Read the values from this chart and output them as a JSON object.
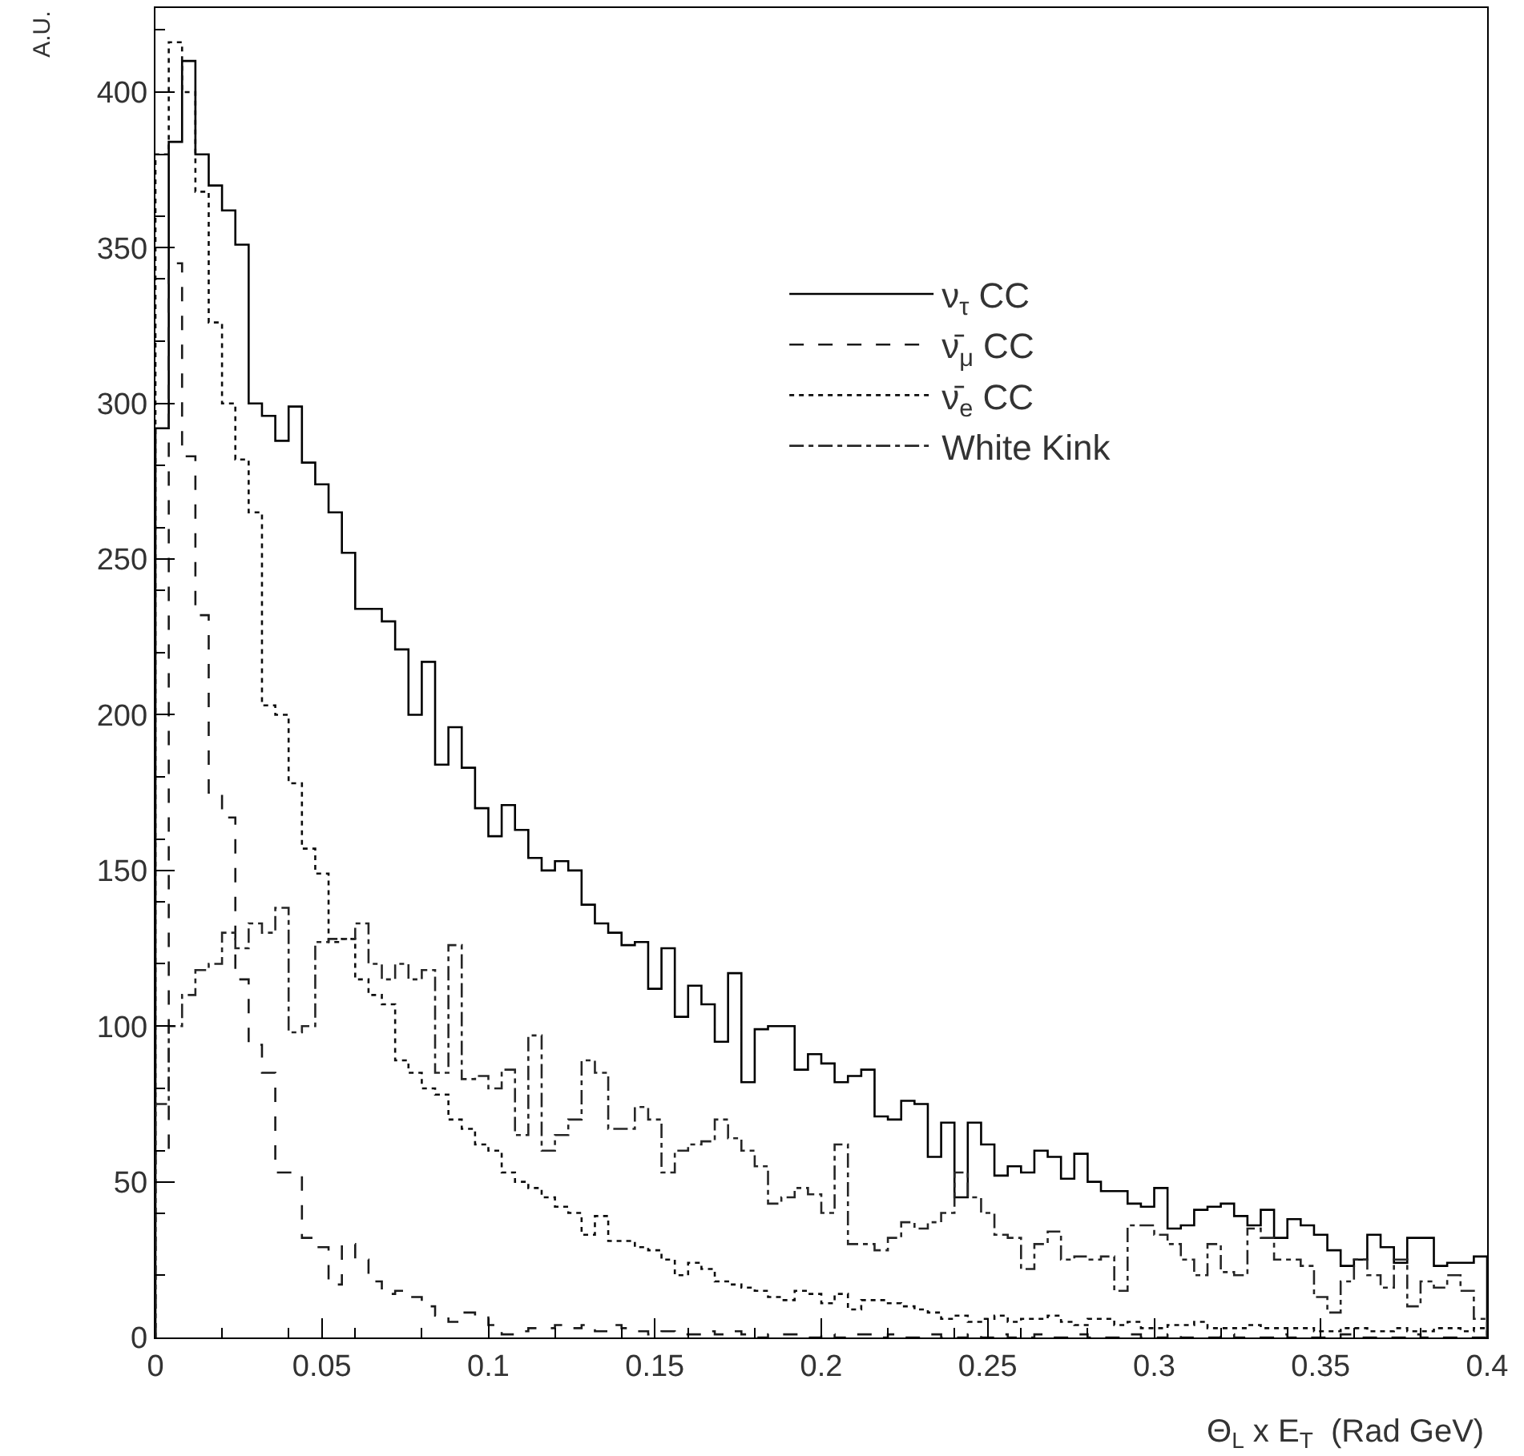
{
  "chart_data": {
    "type": "histogram",
    "xlabel": "Θ$_{L}$ x E$_{T}$  (Rad GeV)",
    "ylabel": "A.U.",
    "bins": [
      0,
      0.004,
      0.008,
      0.012,
      0.016,
      0.02,
      0.024,
      0.028,
      0.032,
      0.036,
      0.04,
      0.044,
      0.048,
      0.052,
      0.056,
      0.06,
      0.064,
      0.068,
      0.072,
      0.076,
      0.08,
      0.084,
      0.088,
      0.092,
      0.096,
      0.1,
      0.104,
      0.108,
      0.112,
      0.116,
      0.12,
      0.124,
      0.128,
      0.132,
      0.136,
      0.14,
      0.144,
      0.148,
      0.152,
      0.156,
      0.16,
      0.164,
      0.168,
      0.172,
      0.176,
      0.18,
      0.184,
      0.188,
      0.192,
      0.196,
      0.2,
      0.204,
      0.208,
      0.212,
      0.216,
      0.22,
      0.224,
      0.228,
      0.232,
      0.236,
      0.24,
      0.244,
      0.248,
      0.252,
      0.256,
      0.26,
      0.264,
      0.268,
      0.272,
      0.276,
      0.28,
      0.284,
      0.288,
      0.292,
      0.296,
      0.3,
      0.304,
      0.308,
      0.312,
      0.316,
      0.32,
      0.324,
      0.328,
      0.332,
      0.336,
      0.34,
      0.344,
      0.348,
      0.352,
      0.356,
      0.36,
      0.364,
      0.368,
      0.372,
      0.376,
      0.38,
      0.384,
      0.388,
      0.392,
      0.396,
      0.4
    ],
    "series": [
      {
        "name": "ν$_{τ}$ CC",
        "color": "#000000",
        "line_style": "solid",
        "values": [
          292,
          384,
          410,
          380,
          370,
          362,
          351,
          300,
          296,
          288,
          299,
          281,
          274,
          265,
          252,
          234,
          234,
          230,
          221,
          200,
          217,
          184,
          196,
          183,
          170,
          161,
          171,
          163,
          154,
          150,
          153,
          150,
          139,
          133,
          130,
          126,
          127,
          112,
          125,
          103,
          113,
          107,
          95,
          117,
          82,
          99,
          100,
          100,
          86,
          91,
          88,
          82,
          84,
          86,
          71,
          70,
          76,
          75,
          58,
          69,
          45,
          69,
          62,
          52,
          55,
          53,
          60,
          58,
          51,
          59,
          50,
          47,
          47,
          43,
          42,
          48,
          35,
          36,
          41,
          42,
          43,
          39,
          36,
          41,
          32,
          38,
          36,
          33,
          28,
          23,
          25,
          33,
          29,
          24,
          32,
          32,
          23,
          24,
          24,
          26
        ]
      },
      {
        "name": "ν̄$_{μ}$ CC",
        "color": "#1a1a1a",
        "line_style": "dashed",
        "values": [
          60,
          345,
          283,
          232,
          175,
          167,
          115,
          94,
          85,
          53,
          53,
          32,
          29,
          17,
          30,
          25,
          18,
          14,
          15,
          13,
          10,
          7,
          5,
          8,
          7,
          4,
          1,
          2,
          3,
          3,
          4,
          3,
          4,
          2,
          4,
          3,
          2,
          1,
          2,
          1,
          1,
          2,
          1,
          2,
          1,
          0,
          1,
          1,
          1,
          0,
          1,
          0,
          1,
          1,
          0,
          1,
          0,
          0,
          1,
          0,
          0,
          1,
          0,
          1,
          0,
          0,
          1,
          0,
          0,
          1,
          0,
          0,
          0,
          1,
          0,
          0,
          1,
          0,
          0,
          0,
          1,
          0,
          0,
          0,
          1,
          0,
          0,
          0,
          0,
          1,
          0,
          0,
          0,
          0,
          1,
          0,
          0,
          0,
          0,
          0
        ]
      },
      {
        "name": "ν̄$_{e}$ CC",
        "color": "#0d0d0d",
        "line_style": "dotted",
        "values": [
          380,
          416,
          400,
          368,
          326,
          300,
          282,
          265,
          203,
          200,
          178,
          157,
          149,
          127,
          128,
          115,
          110,
          107,
          89,
          85,
          80,
          78,
          70,
          67,
          62,
          60,
          53,
          50,
          48,
          45,
          42,
          40,
          33,
          39,
          31,
          31,
          29,
          28,
          25,
          20,
          24,
          22,
          18,
          17,
          16,
          15,
          13,
          12,
          15,
          14,
          11,
          14,
          9,
          12,
          12,
          11,
          10,
          9,
          8,
          6,
          7,
          5,
          6,
          7,
          5,
          6,
          6,
          7,
          5,
          4,
          6,
          6,
          4,
          5,
          3,
          3,
          4,
          4,
          5,
          3,
          3,
          3,
          4,
          3,
          3,
          3,
          3,
          2,
          2,
          3,
          3,
          2,
          2,
          3,
          2,
          2,
          3,
          3,
          2,
          3
        ]
      },
      {
        "name": "White Kink",
        "color": "#262626",
        "line_style": "dashdot",
        "values": [
          75,
          100,
          110,
          118,
          120,
          130,
          125,
          133,
          130,
          138,
          98,
          100,
          127,
          128,
          128,
          133,
          120,
          115,
          120,
          115,
          118,
          85,
          126,
          83,
          84,
          80,
          86,
          65,
          97,
          60,
          65,
          70,
          89,
          85,
          67,
          67,
          74,
          70,
          53,
          60,
          62,
          63,
          70,
          64,
          60,
          55,
          43,
          45,
          48,
          46,
          40,
          62,
          30,
          30,
          28,
          32,
          37,
          35,
          37,
          40,
          53,
          45,
          40,
          33,
          32,
          22,
          30,
          34,
          25,
          26,
          25,
          26,
          15,
          36,
          36,
          33,
          30,
          25,
          20,
          30,
          21,
          20,
          35,
          32,
          25,
          25,
          23,
          13,
          8,
          18,
          25,
          20,
          16,
          25,
          10,
          18,
          16,
          20,
          15,
          6
        ]
      }
    ],
    "xlim": [
      0,
      0.4
    ],
    "xticks": [
      0,
      0.05,
      0.1,
      0.15,
      0.2,
      0.25,
      0.3,
      0.35,
      0.4
    ],
    "ylim": [
      0,
      427
    ],
    "yticks": [
      0,
      50,
      100,
      150,
      200,
      250,
      300,
      350,
      400
    ],
    "legend": "top right"
  }
}
